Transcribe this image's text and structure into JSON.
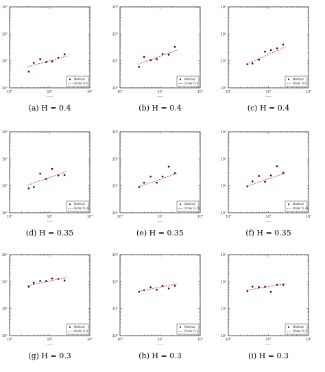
{
  "chart_data": [
    {
      "type": "scatter",
      "caption": "(a)  H = 0.4",
      "xlabel": "——",
      "ylabel": "",
      "x_ticks": [
        "10⁰",
        "10¹",
        "10²"
      ],
      "y_ticks": [
        "10¹",
        "10²",
        "10³",
        "10⁴"
      ],
      "xlim": [
        1,
        100
      ],
      "ylim": [
        10,
        10000
      ],
      "log_x": true,
      "log_y": true,
      "legend": [
        "Method",
        "Order 0.4"
      ],
      "legend_position": "lower-right",
      "series": [
        {
          "name": "Method",
          "marker": "dot",
          "x": [
            3.0,
            4.0,
            5.8,
            8.2,
            11.5,
            16.4,
            23.4
          ],
          "y": [
            40,
            85,
            115,
            90,
            95,
            130,
            175
          ]
        },
        {
          "name": "Order 0.4",
          "line": "dashed",
          "color": "#e0302a",
          "x": [
            2.8,
            27
          ],
          "y": [
            60,
            150
          ]
        }
      ]
    },
    {
      "type": "scatter",
      "caption": "(b)  H = 0.4",
      "xlabel": "——",
      "ylabel": "",
      "x_ticks": [
        "10⁰",
        "10¹",
        "10²"
      ],
      "y_ticks": [
        "10¹",
        "10²",
        "10³",
        "10⁴"
      ],
      "xlim": [
        1,
        100
      ],
      "ylim": [
        10,
        10000
      ],
      "log_x": true,
      "log_y": true,
      "legend": [
        "Method",
        "Order 0.4"
      ],
      "legend_position": "lower-right",
      "series": [
        {
          "name": "Method",
          "marker": "dot",
          "x": [
            3.0,
            4.0,
            5.8,
            8.2,
            11.5,
            16.4,
            23.4
          ],
          "y": [
            60,
            140,
            105,
            115,
            180,
            170,
            330
          ]
        },
        {
          "name": "Order 0.4",
          "line": "dashed",
          "color": "#e0302a",
          "x": [
            2.8,
            27
          ],
          "y": [
            75,
            250
          ]
        }
      ]
    },
    {
      "type": "scatter",
      "caption": "(c)  H = 0.4",
      "xlabel": "——",
      "ylabel": "",
      "x_ticks": [
        "10⁰",
        "10¹",
        "10²"
      ],
      "y_ticks": [
        "10¹",
        "10²",
        "10³",
        "10⁴"
      ],
      "xlim": [
        1,
        100
      ],
      "ylim": [
        10,
        10000
      ],
      "log_x": true,
      "log_y": true,
      "legend": [
        "Method",
        "Order 0.4"
      ],
      "legend_position": "lower-right",
      "series": [
        {
          "name": "Method",
          "marker": "dot",
          "x": [
            3.0,
            4.0,
            5.8,
            8.2,
            11.5,
            16.4,
            23.4
          ],
          "y": [
            75,
            80,
            110,
            220,
            250,
            290,
            400
          ]
        },
        {
          "name": "Order 0.4",
          "line": "dashed",
          "color": "#e0302a",
          "x": [
            2.8,
            27
          ],
          "y": [
            75,
            330
          ]
        }
      ]
    },
    {
      "type": "scatter",
      "caption": "(d)  H = 0.35",
      "xlabel": "——",
      "ylabel": "",
      "x_ticks": [
        "10⁰",
        "10¹",
        "10²"
      ],
      "y_ticks": [
        "10¹",
        "10²",
        "10³",
        "10⁴"
      ],
      "xlim": [
        1,
        100
      ],
      "ylim": [
        10,
        10000
      ],
      "log_x": true,
      "log_y": true,
      "legend": [
        "Method",
        "Order 0.35"
      ],
      "legend_position": "lower-right",
      "series": [
        {
          "name": "Method",
          "marker": "dot",
          "x": [
            3.0,
            4.0,
            5.8,
            8.2,
            11.5,
            16.4,
            23.4
          ],
          "y": [
            80,
            90,
            280,
            180,
            420,
            240,
            250
          ]
        },
        {
          "name": "Order 0.35",
          "line": "dashed",
          "color": "#e0302a",
          "x": [
            2.8,
            27
          ],
          "y": [
            105,
            340
          ]
        }
      ]
    },
    {
      "type": "scatter",
      "caption": "(e)  H = 0.35",
      "xlabel": "——",
      "ylabel": "",
      "x_ticks": [
        "10⁰",
        "10¹",
        "10²"
      ],
      "y_ticks": [
        "10¹",
        "10²",
        "10³",
        "10⁴"
      ],
      "xlim": [
        1,
        100
      ],
      "ylim": [
        10,
        10000
      ],
      "log_x": true,
      "log_y": true,
      "legend": [
        "Method",
        "Order 0.35"
      ],
      "legend_position": "lower-right",
      "series": [
        {
          "name": "Method",
          "marker": "dot",
          "x": [
            3.0,
            4.0,
            5.8,
            8.2,
            11.5,
            16.4,
            23.4
          ],
          "y": [
            90,
            130,
            220,
            130,
            220,
            510,
            290
          ]
        },
        {
          "name": "Order 0.35",
          "line": "dashed",
          "color": "#e0302a",
          "x": [
            2.8,
            27
          ],
          "y": [
            90,
            290
          ]
        }
      ]
    },
    {
      "type": "scatter",
      "caption": "(f)  H = 0.35",
      "xlabel": "——",
      "ylabel": "",
      "x_ticks": [
        "10⁰",
        "10¹",
        "10²"
      ],
      "y_ticks": [
        "10¹",
        "10²",
        "10³",
        "10⁴"
      ],
      "xlim": [
        1,
        100
      ],
      "ylim": [
        10,
        10000
      ],
      "log_x": true,
      "log_y": true,
      "legend": [
        "Method",
        "Order 0.35"
      ],
      "legend_position": "lower-right",
      "series": [
        {
          "name": "Method",
          "marker": "dot",
          "x": [
            3.0,
            4.0,
            5.8,
            8.2,
            11.5,
            16.4,
            23.4
          ],
          "y": [
            95,
            145,
            230,
            140,
            240,
            530,
            300
          ]
        },
        {
          "name": "Order 0.35",
          "line": "dashed",
          "color": "#e0302a",
          "x": [
            2.8,
            27
          ],
          "y": [
            95,
            300
          ]
        }
      ]
    },
    {
      "type": "scatter",
      "caption": "(g)  H = 0.3",
      "xlabel": "——",
      "ylabel": "",
      "x_ticks": [
        "10⁰",
        "10¹",
        "10²"
      ],
      "y_ticks": [
        "10¹",
        "10²",
        "10³",
        "10⁴"
      ],
      "xlim": [
        1,
        100
      ],
      "ylim": [
        10,
        10000
      ],
      "log_x": true,
      "log_y": true,
      "legend": [
        "Method",
        "Order 0.3"
      ],
      "legend_position": "lower-right",
      "series": [
        {
          "name": "Method",
          "marker": "dot",
          "x": [
            3.0,
            4.0,
            5.8,
            8.2,
            11.5,
            16.4,
            23.4
          ],
          "y": [
            650,
            900,
            1050,
            1050,
            1300,
            1250,
            1100
          ]
        },
        {
          "name": "Order 0.3",
          "line": "dashed",
          "color": "#e0302a",
          "x": [
            2.8,
            27
          ],
          "y": [
            700,
            1450
          ]
        }
      ]
    },
    {
      "type": "scatter",
      "caption": "(h)  H = 0.3",
      "xlabel": "——",
      "ylabel": "",
      "x_ticks": [
        "10⁰",
        "10¹",
        "10²"
      ],
      "y_ticks": [
        "10¹",
        "10²",
        "10³",
        "10⁴"
      ],
      "xlim": [
        1,
        100
      ],
      "ylim": [
        10,
        10000
      ],
      "log_x": true,
      "log_y": true,
      "legend": [
        "Method",
        "Order 0.3"
      ],
      "legend_position": "lower-right",
      "series": [
        {
          "name": "Method",
          "marker": "dot",
          "x": [
            3.0,
            4.0,
            5.8,
            8.2,
            11.5,
            16.4,
            23.4
          ],
          "y": [
            420,
            480,
            620,
            500,
            700,
            560,
            700
          ]
        },
        {
          "name": "Order 0.3",
          "line": "dashed",
          "color": "#e0302a",
          "x": [
            2.8,
            27
          ],
          "y": [
            430,
            840
          ]
        }
      ]
    },
    {
      "type": "scatter",
      "caption": "(i)  H = 0.3",
      "xlabel": "——",
      "ylabel": "",
      "x_ticks": [
        "10⁰",
        "10¹",
        "10²"
      ],
      "y_ticks": [
        "10¹",
        "10²",
        "10³",
        "10⁴"
      ],
      "xlim": [
        1,
        100
      ],
      "ylim": [
        10,
        10000
      ],
      "log_x": true,
      "log_y": true,
      "legend": [
        "Method",
        "Order 0.3"
      ],
      "legend_position": "lower-right",
      "series": [
        {
          "name": "Method",
          "marker": "dot",
          "x": [
            3.0,
            4.0,
            5.8,
            8.2,
            11.5,
            16.4,
            23.4
          ],
          "y": [
            450,
            650,
            620,
            640,
            420,
            760,
            760
          ]
        },
        {
          "name": "Order 0.3",
          "line": "dashed",
          "color": "#e0302a",
          "x": [
            2.8,
            27
          ],
          "y": [
            470,
            850
          ]
        }
      ]
    }
  ]
}
